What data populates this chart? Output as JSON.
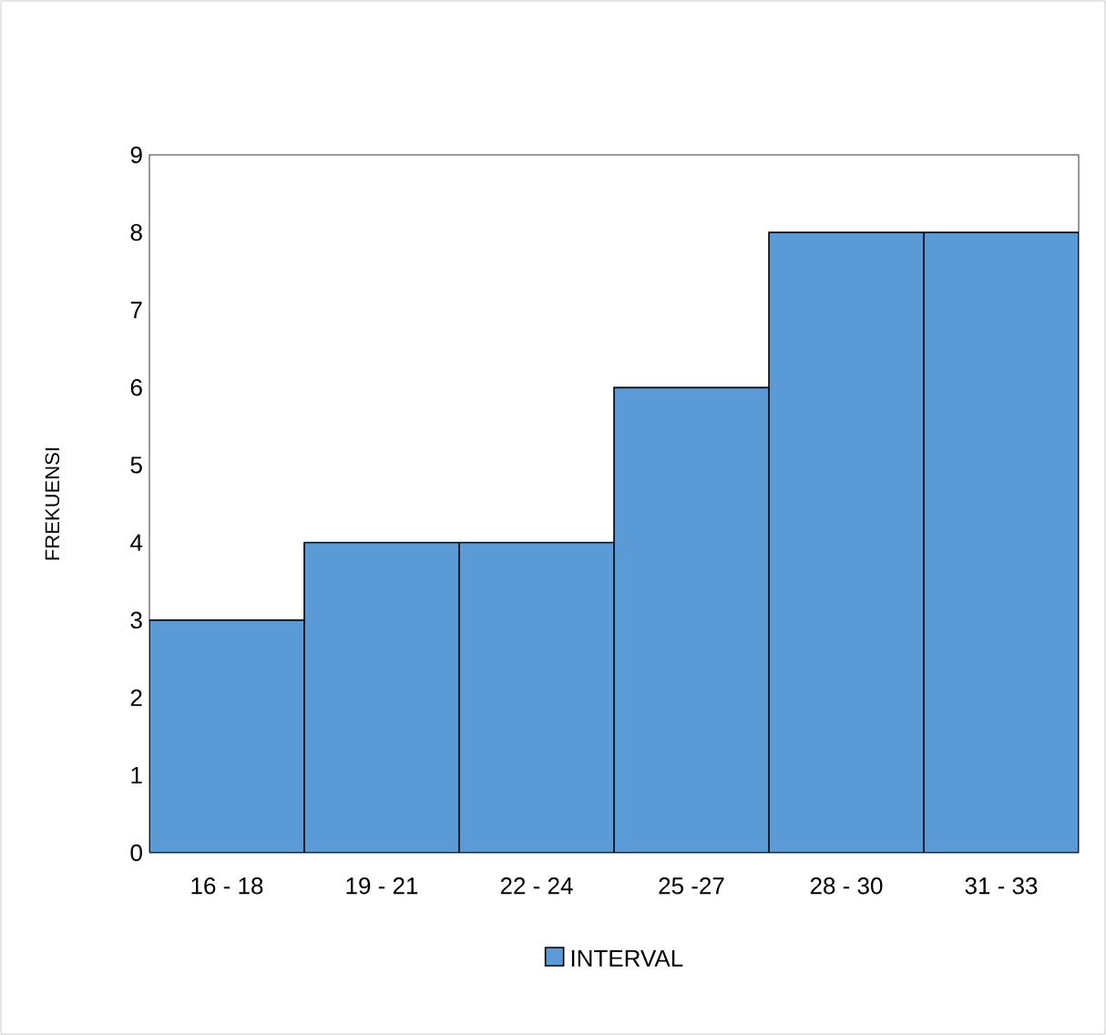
{
  "chart_data": {
    "type": "bar",
    "ylabel": "FREKUENSI",
    "categories": [
      "16 - 18",
      "19 - 21",
      "22 - 24",
      "25 -27",
      "28 - 30",
      "31 - 33"
    ],
    "series": [
      {
        "name": "INTERVAL",
        "color": "#5b9bd5",
        "values": [
          3,
          4,
          4,
          6,
          8,
          8
        ]
      }
    ],
    "ylim": [
      0,
      9
    ],
    "yticks": [
      0,
      1,
      2,
      3,
      4,
      5,
      6,
      7,
      8,
      9
    ],
    "legend": "bottom"
  }
}
